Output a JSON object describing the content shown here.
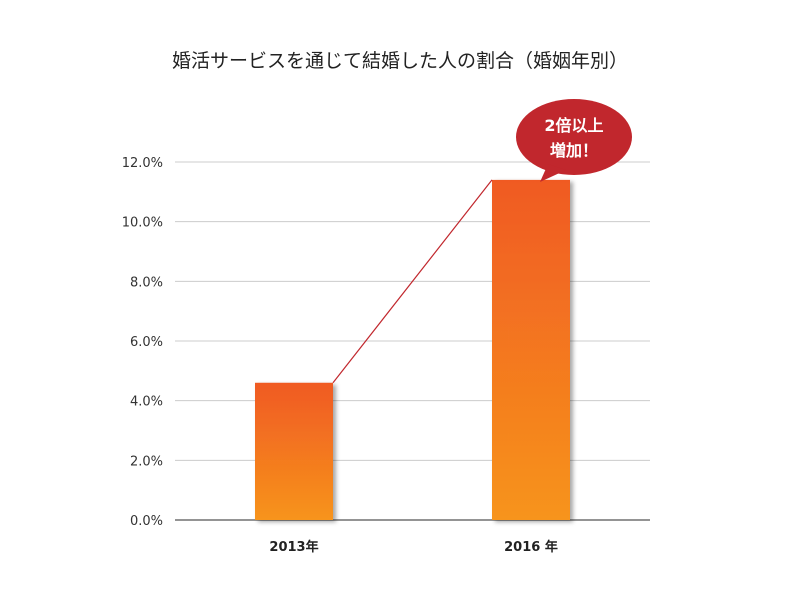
{
  "chart_data": {
    "type": "bar",
    "title": "婚活サービスを通じて結婚した人の割合（婚姻年別）",
    "categories": [
      "2013年",
      "2016 年"
    ],
    "values": [
      4.6,
      11.4
    ],
    "ylim": [
      0,
      12
    ],
    "yticks": [
      "0.0%",
      "2.0%",
      "4.0%",
      "6.0%",
      "8.0%",
      "10.0%",
      "12.0%"
    ],
    "grid": true,
    "bar_color_top": "#f05a22",
    "bar_color_bottom": "#f7941d",
    "trend_line_color": "#c1272d",
    "annotation": {
      "line1": "2倍以上",
      "line2": "増加！",
      "color": "#c1272d"
    }
  }
}
